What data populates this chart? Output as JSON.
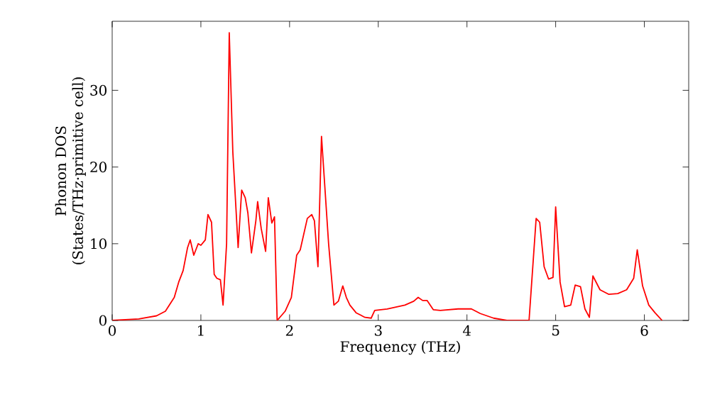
{
  "chart_data": {
    "type": "line",
    "xlabel": "Frequency (THz)",
    "ylabel": "Phonon DOS\n(States/THz·primitive cell)",
    "xlim": [
      0,
      6.5
    ],
    "ylim": [
      0,
      39
    ],
    "xticks": [
      0,
      1,
      2,
      3,
      4,
      5,
      6
    ],
    "yticks": [
      0,
      10,
      20,
      30
    ],
    "marker": "none",
    "line_style": "solid",
    "series": [
      {
        "color": "#ff0000",
        "x": [
          0,
          0.3,
          0.5,
          0.6,
          0.7,
          0.75,
          0.8,
          0.85,
          0.88,
          0.92,
          0.97,
          1.0,
          1.05,
          1.08,
          1.12,
          1.15,
          1.18,
          1.22,
          1.25,
          1.29,
          1.32,
          1.36,
          1.42,
          1.46,
          1.5,
          1.53,
          1.57,
          1.62,
          1.64,
          1.68,
          1.73,
          1.76,
          1.8,
          1.83,
          1.86,
          1.95,
          2.02,
          2.08,
          2.12,
          2.2,
          2.25,
          2.28,
          2.32,
          2.36,
          2.44,
          2.5,
          2.55,
          2.6,
          2.64,
          2.68,
          2.75,
          2.85,
          2.92,
          2.96,
          3.1,
          3.3,
          3.4,
          3.45,
          3.5,
          3.55,
          3.62,
          3.7,
          3.9,
          4.05,
          4.15,
          4.3,
          4.45,
          4.7,
          4.78,
          4.82,
          4.87,
          4.92,
          4.97,
          5.0,
          5.05,
          5.1,
          5.17,
          5.22,
          5.28,
          5.33,
          5.38,
          5.42,
          5.5,
          5.6,
          5.7,
          5.8,
          5.88,
          5.92,
          5.98,
          6.05,
          6.12,
          6.2
        ],
        "values": [
          0,
          0.2,
          0.6,
          1.2,
          3,
          5,
          6.5,
          9.5,
          10.5,
          8.5,
          10,
          9.8,
          10.5,
          13.8,
          12.8,
          6,
          5.5,
          5.3,
          2,
          10,
          37.5,
          22,
          9.5,
          17,
          16,
          14,
          8.8,
          13,
          15.5,
          12,
          9,
          16,
          12.7,
          13.5,
          0,
          1.2,
          3,
          8.5,
          9.2,
          13.3,
          13.8,
          13,
          7,
          24,
          10,
          2,
          2.5,
          4.5,
          3,
          2,
          1,
          0.4,
          0.3,
          1.3,
          1.5,
          2,
          2.5,
          3,
          2.6,
          2.6,
          1.4,
          1.3,
          1.5,
          1.5,
          0.9,
          0.3,
          0,
          0,
          13.3,
          12.8,
          7,
          5.4,
          5.6,
          14.8,
          5,
          1.8,
          2,
          4.6,
          4.4,
          1.5,
          0.4,
          5.8,
          4,
          3.4,
          3.5,
          4,
          5.5,
          9.2,
          4.5,
          2,
          1,
          0
        ]
      }
    ]
  }
}
